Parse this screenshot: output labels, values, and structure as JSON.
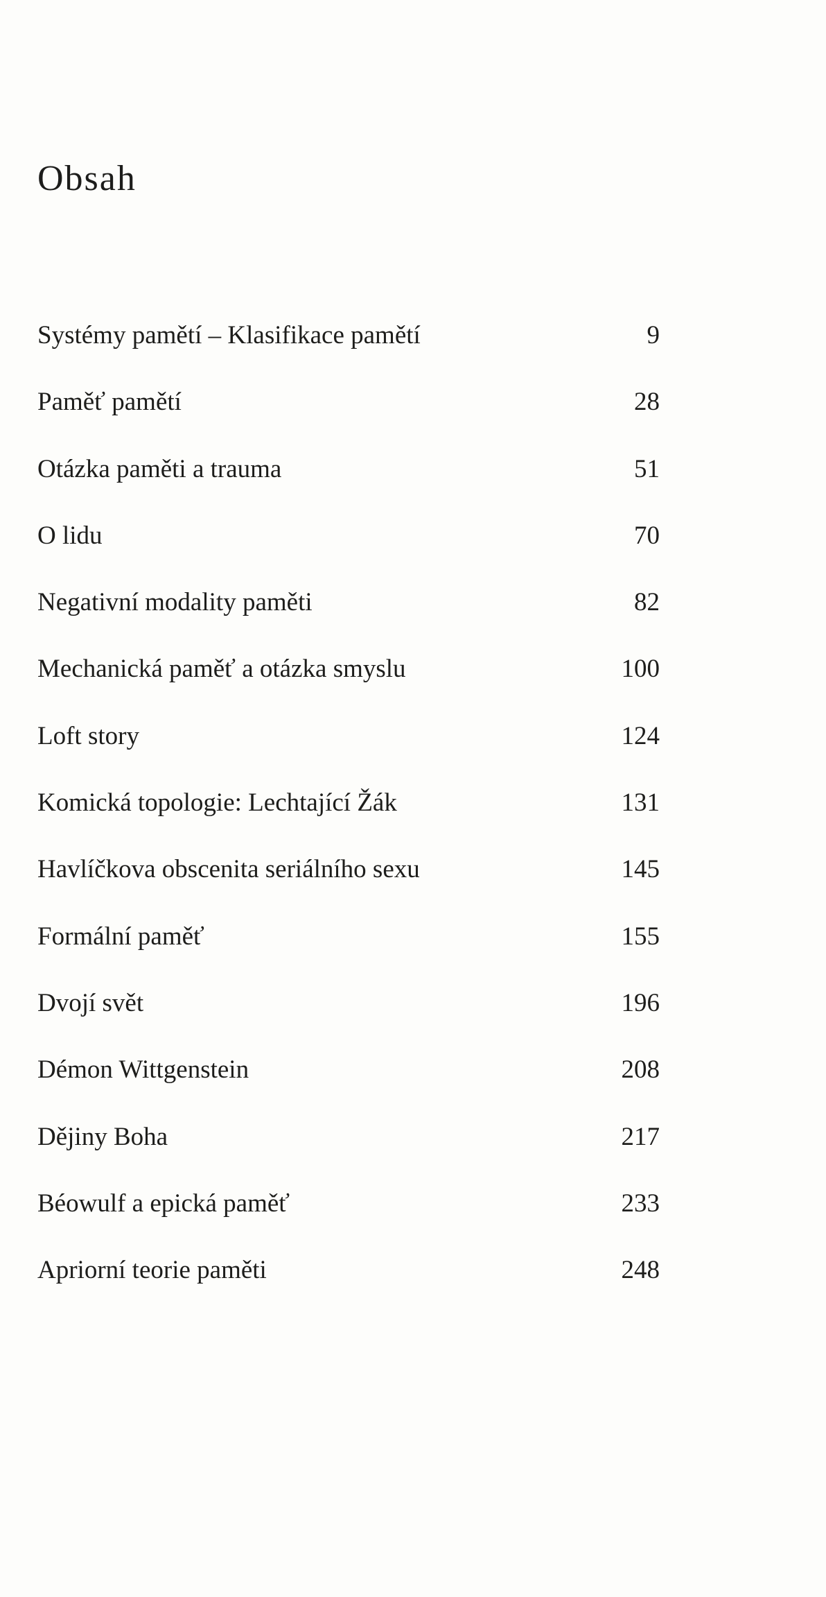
{
  "title": "Obsah",
  "entries": [
    {
      "label": "Systémy pamětí – Klasifikace pamětí",
      "page": "9"
    },
    {
      "label": "Paměť pamětí",
      "page": "28"
    },
    {
      "label": "Otázka paměti a trauma",
      "page": "51"
    },
    {
      "label": "O lidu",
      "page": "70"
    },
    {
      "label": "Negativní modality paměti",
      "page": "82"
    },
    {
      "label": "Mechanická paměť a otázka smyslu",
      "page": "100"
    },
    {
      "label": "Loft story",
      "page": "124"
    },
    {
      "label": "Komická topologie: Lechtající Žák",
      "page": "131"
    },
    {
      "label": "Havlíčkova obscenita seriálního sexu",
      "page": "145"
    },
    {
      "label": "Formální paměť",
      "page": "155"
    },
    {
      "label": "Dvojí svět",
      "page": "196"
    },
    {
      "label": "Démon Wittgenstein",
      "page": "208"
    },
    {
      "label": "Dějiny Boha",
      "page": "217"
    },
    {
      "label": "Béowulf a epická paměť",
      "page": "233"
    },
    {
      "label": "Apriorní teorie paměti",
      "page": "248"
    }
  ]
}
